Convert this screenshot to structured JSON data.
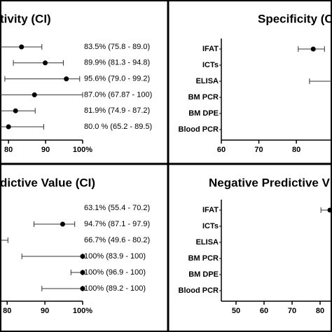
{
  "chart_data": [
    {
      "type": "forest",
      "title": "tivity (CI)",
      "values": [
        83.5,
        89.9,
        95.6,
        87.0,
        81.9,
        80.0
      ],
      "lower": [
        75.8,
        81.3,
        79.0,
        67.87,
        74.9,
        65.2
      ],
      "upper": [
        89.0,
        94.8,
        99.2,
        100,
        87.2,
        89.5
      ],
      "value_labels": [
        "83.5% (75.8 - 89.0)",
        "89.9% (81.3 - 94.8)",
        "95.6% (79.0 - 99.2)",
        "87.0% (67.87 - 100)",
        "81.9% (74.9 - 87.2)",
        "80.0 % (65.2 - 89.5)"
      ],
      "xlim": [
        77.7,
        100
      ],
      "xticks": [
        80,
        90,
        {
          "value": 100,
          "label": "100%"
        }
      ],
      "color": "#000000"
    },
    {
      "type": "forest",
      "title": "Specificity (C",
      "categories": [
        "IFAT",
        "ICTs",
        "ELISA",
        "BM PCR",
        "BM DPE",
        "Blood PCR"
      ],
      "values": [
        84.5,
        null,
        null,
        null,
        null,
        null
      ],
      "lower": [
        80.5,
        null,
        83.5,
        null,
        null,
        null
      ],
      "upper": [
        87.5,
        null,
        100,
        null,
        null,
        null
      ],
      "xlim": [
        60,
        89.5
      ],
      "xticks": [
        60,
        70,
        80
      ],
      "color": "#000000"
    },
    {
      "type": "forest",
      "title": "dictive Value (CI)",
      "values": [
        63.1,
        94.7,
        66.7,
        100,
        100,
        100
      ],
      "lower": [
        55.4,
        87.1,
        49.6,
        83.9,
        96.9,
        89.2
      ],
      "upper": [
        70.2,
        97.9,
        80.2,
        100,
        100,
        100
      ],
      "value_labels": [
        "63.1% (55.4 - 70.2)",
        "94.7% (87.1 - 97.9)",
        "66.7% (49.6 - 80.2)",
        "100% (83.9 - 100)",
        "100% (96.9 - 100)",
        "100% (89.2 - 100)"
      ],
      "xlim": [
        78.1,
        100
      ],
      "xticks": [
        80,
        90,
        {
          "value": 100,
          "label": "100%"
        }
      ],
      "color": "#000000"
    },
    {
      "type": "forest",
      "title": "Negative Predictive V",
      "categories": [
        "IFAT",
        "ICTs",
        "ELISA",
        "BM PCR",
        "BM DPE",
        "Blood PCR"
      ],
      "values": [
        83.5,
        null,
        null,
        null,
        null,
        null
      ],
      "lower": [
        80.3,
        null,
        null,
        null,
        null,
        null
      ],
      "upper": [
        87,
        null,
        null,
        null,
        null,
        null
      ],
      "xlim": [
        44.75,
        84.25
      ],
      "xticks": [
        50,
        60,
        70,
        80
      ],
      "color": "#000000"
    }
  ]
}
